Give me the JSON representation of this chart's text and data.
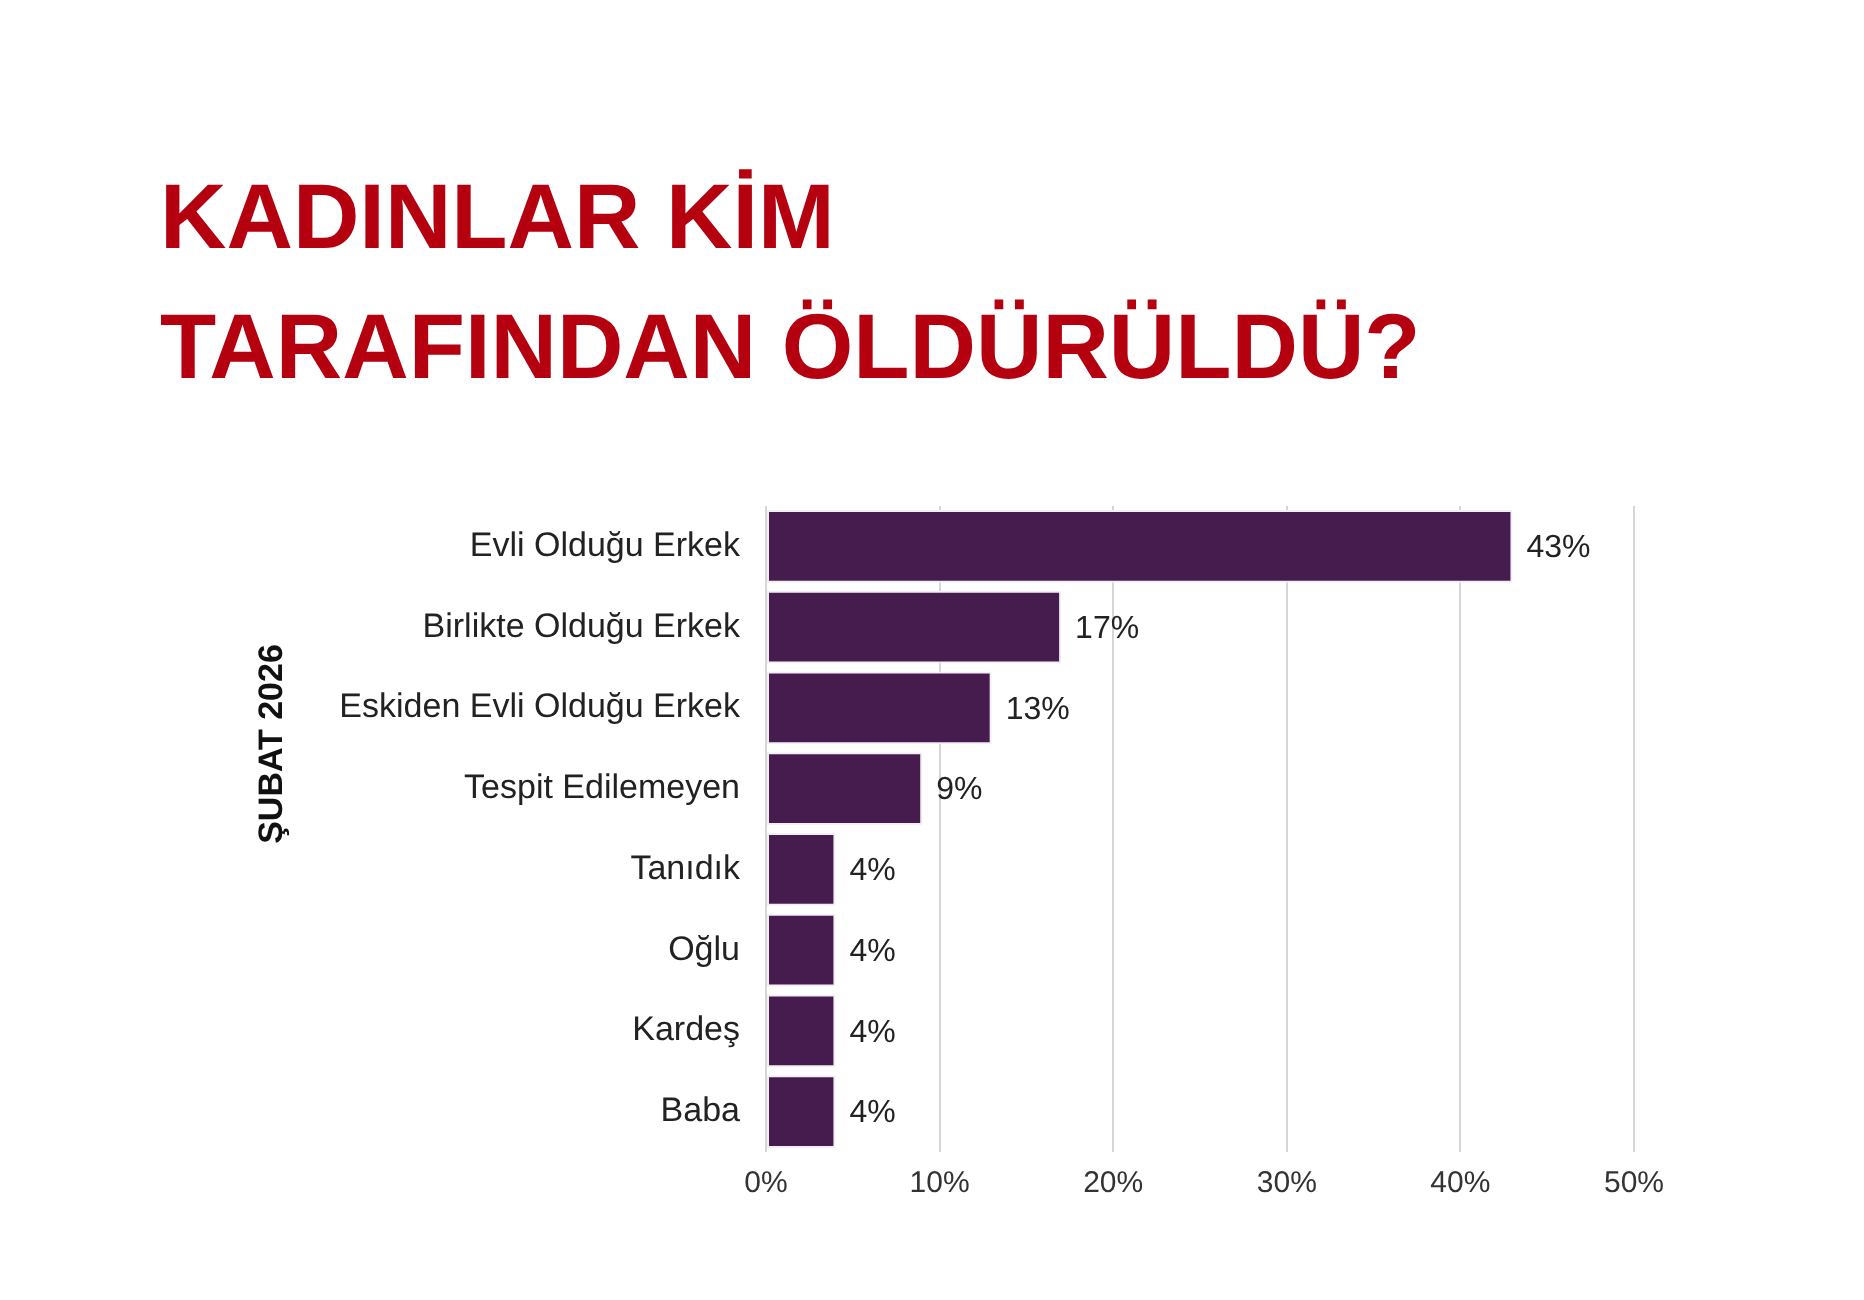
{
  "chart_data": {
    "type": "bar",
    "orientation": "horizontal",
    "title": "KADINLAR KİM TARAFINDAN ÖLDÜRÜLDÜ?",
    "ylabel": "ŞUBAT 2026",
    "categories": [
      "Evli Olduğu Erkek",
      "Birlikte Olduğu Erkek",
      "Eskiden Evli Olduğu Erkek",
      "Tespit Edilemeyen",
      "Tanıdık",
      "Oğlu",
      "Kardeş",
      "Baba"
    ],
    "values": [
      43,
      17,
      13,
      9,
      4,
      4,
      4,
      4
    ],
    "value_labels": [
      "43%",
      "17%",
      "13%",
      "9%",
      "4%",
      "4%",
      "4%",
      "4%"
    ],
    "color": "#461b4d",
    "xlim": [
      0,
      50
    ],
    "xticks": [
      {
        "value": 0,
        "label": "0%"
      },
      {
        "value": 10,
        "label": "10%"
      },
      {
        "value": 20,
        "label": "20%"
      },
      {
        "value": 30,
        "label": "30%"
      },
      {
        "value": 40,
        "label": "40%"
      },
      {
        "value": 50,
        "label": "50%"
      }
    ],
    "grid": "x"
  }
}
